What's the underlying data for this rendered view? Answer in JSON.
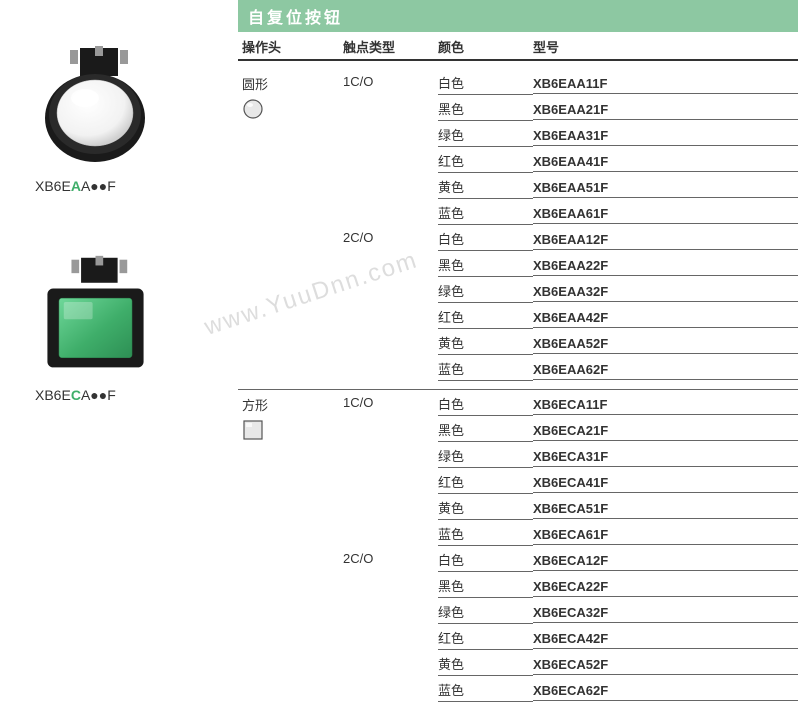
{
  "section_title": "自复位按钮",
  "columns": {
    "operator_head": "操作头",
    "contact_type": "触点类型",
    "color": "颜色",
    "model": "型号"
  },
  "products": [
    {
      "caption_pre": "XB6",
      "caption_mid": "E",
      "caption_green": "A",
      "caption_post": "A●●F",
      "image_type": "round",
      "btn_color": "#ffffff"
    },
    {
      "caption_pre": "XB6",
      "caption_mid": "E",
      "caption_green": "C",
      "caption_post": "A●●F",
      "image_type": "square",
      "btn_color": "#3fae6a"
    }
  ],
  "groups": [
    {
      "operator_head": "圆形",
      "shape": "circle",
      "contact_groups": [
        {
          "contact_type": "1C/O",
          "rows": [
            {
              "color": "白色",
              "model": "XB6EAA11F"
            },
            {
              "color": "黑色",
              "model": "XB6EAA21F"
            },
            {
              "color": "绿色",
              "model": "XB6EAA31F"
            },
            {
              "color": "红色",
              "model": "XB6EAA41F"
            },
            {
              "color": "黄色",
              "model": "XB6EAA51F"
            },
            {
              "color": "蓝色",
              "model": "XB6EAA61F"
            }
          ]
        },
        {
          "contact_type": "2C/O",
          "rows": [
            {
              "color": "白色",
              "model": "XB6EAA12F"
            },
            {
              "color": "黑色",
              "model": "XB6EAA22F"
            },
            {
              "color": "绿色",
              "model": "XB6EAA32F"
            },
            {
              "color": "红色",
              "model": "XB6EAA42F"
            },
            {
              "color": "黄色",
              "model": "XB6EAA52F"
            },
            {
              "color": "蓝色",
              "model": "XB6EAA62F"
            }
          ]
        }
      ]
    },
    {
      "operator_head": "方形",
      "shape": "square",
      "contact_groups": [
        {
          "contact_type": "1C/O",
          "rows": [
            {
              "color": "白色",
              "model": "XB6ECA11F"
            },
            {
              "color": "黑色",
              "model": "XB6ECA21F"
            },
            {
              "color": "绿色",
              "model": "XB6ECA31F"
            },
            {
              "color": "红色",
              "model": "XB6ECA41F"
            },
            {
              "color": "黄色",
              "model": "XB6ECA51F"
            },
            {
              "color": "蓝色",
              "model": "XB6ECA61F"
            }
          ]
        },
        {
          "contact_type": "2C/O",
          "rows": [
            {
              "color": "白色",
              "model": "XB6ECA12F"
            },
            {
              "color": "黑色",
              "model": "XB6ECA22F"
            },
            {
              "color": "绿色",
              "model": "XB6ECA32F"
            },
            {
              "color": "红色",
              "model": "XB6ECA42F"
            },
            {
              "color": "黄色",
              "model": "XB6ECA52F"
            },
            {
              "color": "蓝色",
              "model": "XB6ECA62F"
            }
          ]
        }
      ]
    }
  ],
  "colors": {
    "header_bg": "#8dc8a2",
    "header_text": "#ffffff",
    "row_border": "#666666",
    "accent_green": "#3fae6a",
    "text": "#333333",
    "background": "#ffffff",
    "watermark": "rgba(180,180,180,0.45)"
  },
  "watermark_text": "www.YuuDnn.com"
}
